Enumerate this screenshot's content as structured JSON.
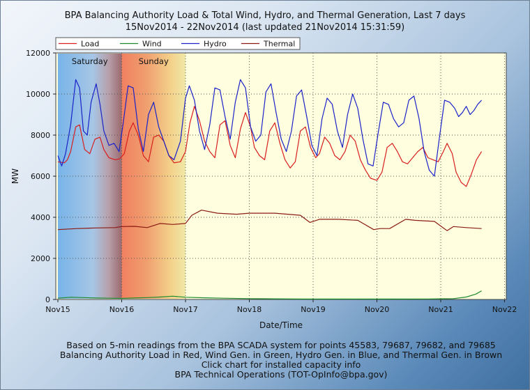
{
  "chart_data": {
    "type": "line",
    "title": "BPA Balancing Authority Load & Total Wind, Hydro, and Thermal Generation, Last 7 days",
    "subtitle": "15Nov2014 - 22Nov2014 (last updated 21Nov2014 15:31:59)",
    "xlabel": "Date/Time",
    "ylabel": "MW",
    "ylim": [
      0,
      12000
    ],
    "xlim": [
      0,
      7
    ],
    "yticks": [
      0,
      2000,
      4000,
      6000,
      8000,
      10000,
      12000
    ],
    "ytick_labels": [
      "0",
      "2000",
      "4000",
      "6000",
      "8000",
      "10000",
      "12000"
    ],
    "xtick_labels": [
      "Nov15",
      "Nov16",
      "Nov17",
      "Nov18",
      "Nov19",
      "Nov20",
      "Nov21",
      "Nov22"
    ],
    "weekend_bands": [
      {
        "label": "Saturday",
        "start": 0,
        "end": 1
      },
      {
        "label": "Sunday",
        "start": 1,
        "end": 2
      }
    ],
    "grid": "dotted",
    "series": [
      {
        "name": "Load",
        "color": "#d81e1e",
        "x": [
          0.0,
          0.1,
          0.15,
          0.2,
          0.28,
          0.34,
          0.42,
          0.5,
          0.58,
          0.66,
          0.72,
          0.8,
          0.9,
          0.97,
          1.04,
          1.12,
          1.18,
          1.26,
          1.34,
          1.42,
          1.5,
          1.58,
          1.66,
          1.74,
          1.82,
          1.92,
          2.0,
          2.07,
          2.14,
          2.22,
          2.3,
          2.38,
          2.46,
          2.54,
          2.62,
          2.7,
          2.78,
          2.86,
          2.94,
          3.02,
          3.08,
          3.16,
          3.24,
          3.32,
          3.4,
          3.48,
          3.56,
          3.64,
          3.72,
          3.8,
          3.88,
          3.96,
          4.04,
          4.1,
          4.18,
          4.26,
          4.34,
          4.42,
          4.5,
          4.58,
          4.66,
          4.74,
          4.82,
          4.9,
          5.0,
          5.08,
          5.16,
          5.24,
          5.32,
          5.4,
          5.48,
          5.56,
          5.64,
          5.72,
          5.8,
          5.88,
          5.96,
          6.04,
          6.1,
          6.18,
          6.24,
          6.32,
          6.4,
          6.48,
          6.56,
          6.64
        ],
        "values": [
          6700,
          6650,
          6800,
          7200,
          8400,
          8500,
          7300,
          7100,
          7800,
          7900,
          7300,
          6900,
          6800,
          6850,
          7100,
          8200,
          8600,
          8000,
          7000,
          6700,
          7900,
          8000,
          7700,
          7000,
          6650,
          6700,
          7200,
          8600,
          9400,
          8700,
          7700,
          7200,
          6900,
          8500,
          8700,
          7500,
          6900,
          8300,
          9100,
          8400,
          7400,
          7000,
          6800,
          8200,
          8600,
          7600,
          6800,
          6400,
          6700,
          8200,
          8400,
          7400,
          6900,
          7100,
          7900,
          7600,
          7000,
          6800,
          7200,
          8000,
          7700,
          6800,
          6300,
          5900,
          5800,
          6200,
          7400,
          7600,
          7200,
          6700,
          6600,
          6900,
          7200,
          7400,
          6900,
          6800,
          6700,
          7200,
          7600,
          7100,
          6200,
          5700,
          5500,
          6100,
          6800,
          7200
        ]
      },
      {
        "name": "Wind",
        "color": "#1c8a2c",
        "x": [
          0.0,
          0.2,
          0.4,
          0.6,
          0.8,
          1.0,
          1.2,
          1.4,
          1.6,
          1.8,
          2.0,
          2.3,
          2.6,
          3.0,
          3.4,
          3.8,
          4.2,
          4.6,
          5.0,
          5.4,
          5.8,
          6.2,
          6.4,
          6.55,
          6.64
        ],
        "values": [
          60,
          110,
          90,
          70,
          60,
          50,
          70,
          90,
          120,
          160,
          110,
          80,
          60,
          40,
          30,
          20,
          20,
          20,
          20,
          20,
          25,
          40,
          120,
          260,
          420
        ]
      },
      {
        "name": "Hydro",
        "color": "#1a22c8",
        "x": [
          0.0,
          0.06,
          0.12,
          0.2,
          0.28,
          0.34,
          0.4,
          0.46,
          0.52,
          0.6,
          0.66,
          0.72,
          0.8,
          0.88,
          0.96,
          1.02,
          1.1,
          1.18,
          1.26,
          1.34,
          1.42,
          1.5,
          1.58,
          1.66,
          1.74,
          1.82,
          1.92,
          2.0,
          2.06,
          2.14,
          2.22,
          2.3,
          2.38,
          2.46,
          2.54,
          2.62,
          2.7,
          2.78,
          2.86,
          2.94,
          3.02,
          3.1,
          3.18,
          3.26,
          3.34,
          3.42,
          3.5,
          3.58,
          3.66,
          3.74,
          3.82,
          3.9,
          3.98,
          4.06,
          4.14,
          4.22,
          4.3,
          4.38,
          4.46,
          4.54,
          4.62,
          4.7,
          4.78,
          4.86,
          4.94,
          5.02,
          5.1,
          5.18,
          5.26,
          5.34,
          5.42,
          5.5,
          5.58,
          5.66,
          5.74,
          5.82,
          5.9,
          5.98,
          6.06,
          6.14,
          6.22,
          6.28,
          6.34,
          6.4,
          6.46,
          6.52,
          6.58,
          6.64
        ],
        "values": [
          7000,
          6500,
          7100,
          8500,
          10700,
          10300,
          8200,
          8000,
          9600,
          10500,
          9500,
          8200,
          7500,
          7600,
          7200,
          8500,
          10400,
          10300,
          8300,
          7200,
          9000,
          9600,
          8400,
          7700,
          7000,
          6800,
          7700,
          9800,
          10400,
          9700,
          8200,
          7300,
          8500,
          10300,
          10200,
          8900,
          7800,
          9600,
          10700,
          10300,
          8400,
          7700,
          8000,
          10100,
          10500,
          9100,
          7800,
          7200,
          8200,
          9900,
          10200,
          8900,
          7500,
          7000,
          8800,
          9800,
          9500,
          8200,
          7400,
          9000,
          10000,
          9300,
          7800,
          6600,
          6500,
          8100,
          9600,
          9500,
          8800,
          8400,
          8600,
          9700,
          9900,
          8800,
          7200,
          6300,
          6000,
          7900,
          9700,
          9600,
          9300,
          8900,
          9100,
          9400,
          9000,
          9200,
          9500,
          9700
        ]
      },
      {
        "name": "Thermal",
        "color": "#8b1a12",
        "x": [
          0.0,
          0.3,
          0.6,
          0.9,
          1.0,
          1.2,
          1.4,
          1.6,
          1.8,
          2.0,
          2.1,
          2.25,
          2.5,
          2.8,
          3.0,
          3.4,
          3.8,
          3.95,
          4.1,
          4.4,
          4.7,
          4.95,
          5.05,
          5.2,
          5.45,
          5.6,
          5.9,
          6.1,
          6.2,
          6.4,
          6.64
        ],
        "values": [
          3400,
          3450,
          3480,
          3500,
          3550,
          3560,
          3500,
          3700,
          3650,
          3700,
          4100,
          4350,
          4200,
          4150,
          4200,
          4200,
          4100,
          3750,
          3900,
          3900,
          3850,
          3400,
          3450,
          3450,
          3900,
          3850,
          3800,
          3350,
          3550,
          3500,
          3450
        ]
      }
    ]
  },
  "footer": {
    "line1": "Based on 5-min readings from the BPA SCADA system for points 45583, 79687, 79682, and 79685",
    "line2": "Balancing Authority Load in Red, Wind Gen. in Green, Hydro Gen. in Blue, and Thermal Gen. in Brown",
    "line3": "Click chart for installed capacity info",
    "line4": "BPA Technical Operations (TOT-OpInfo@bpa.gov)"
  }
}
